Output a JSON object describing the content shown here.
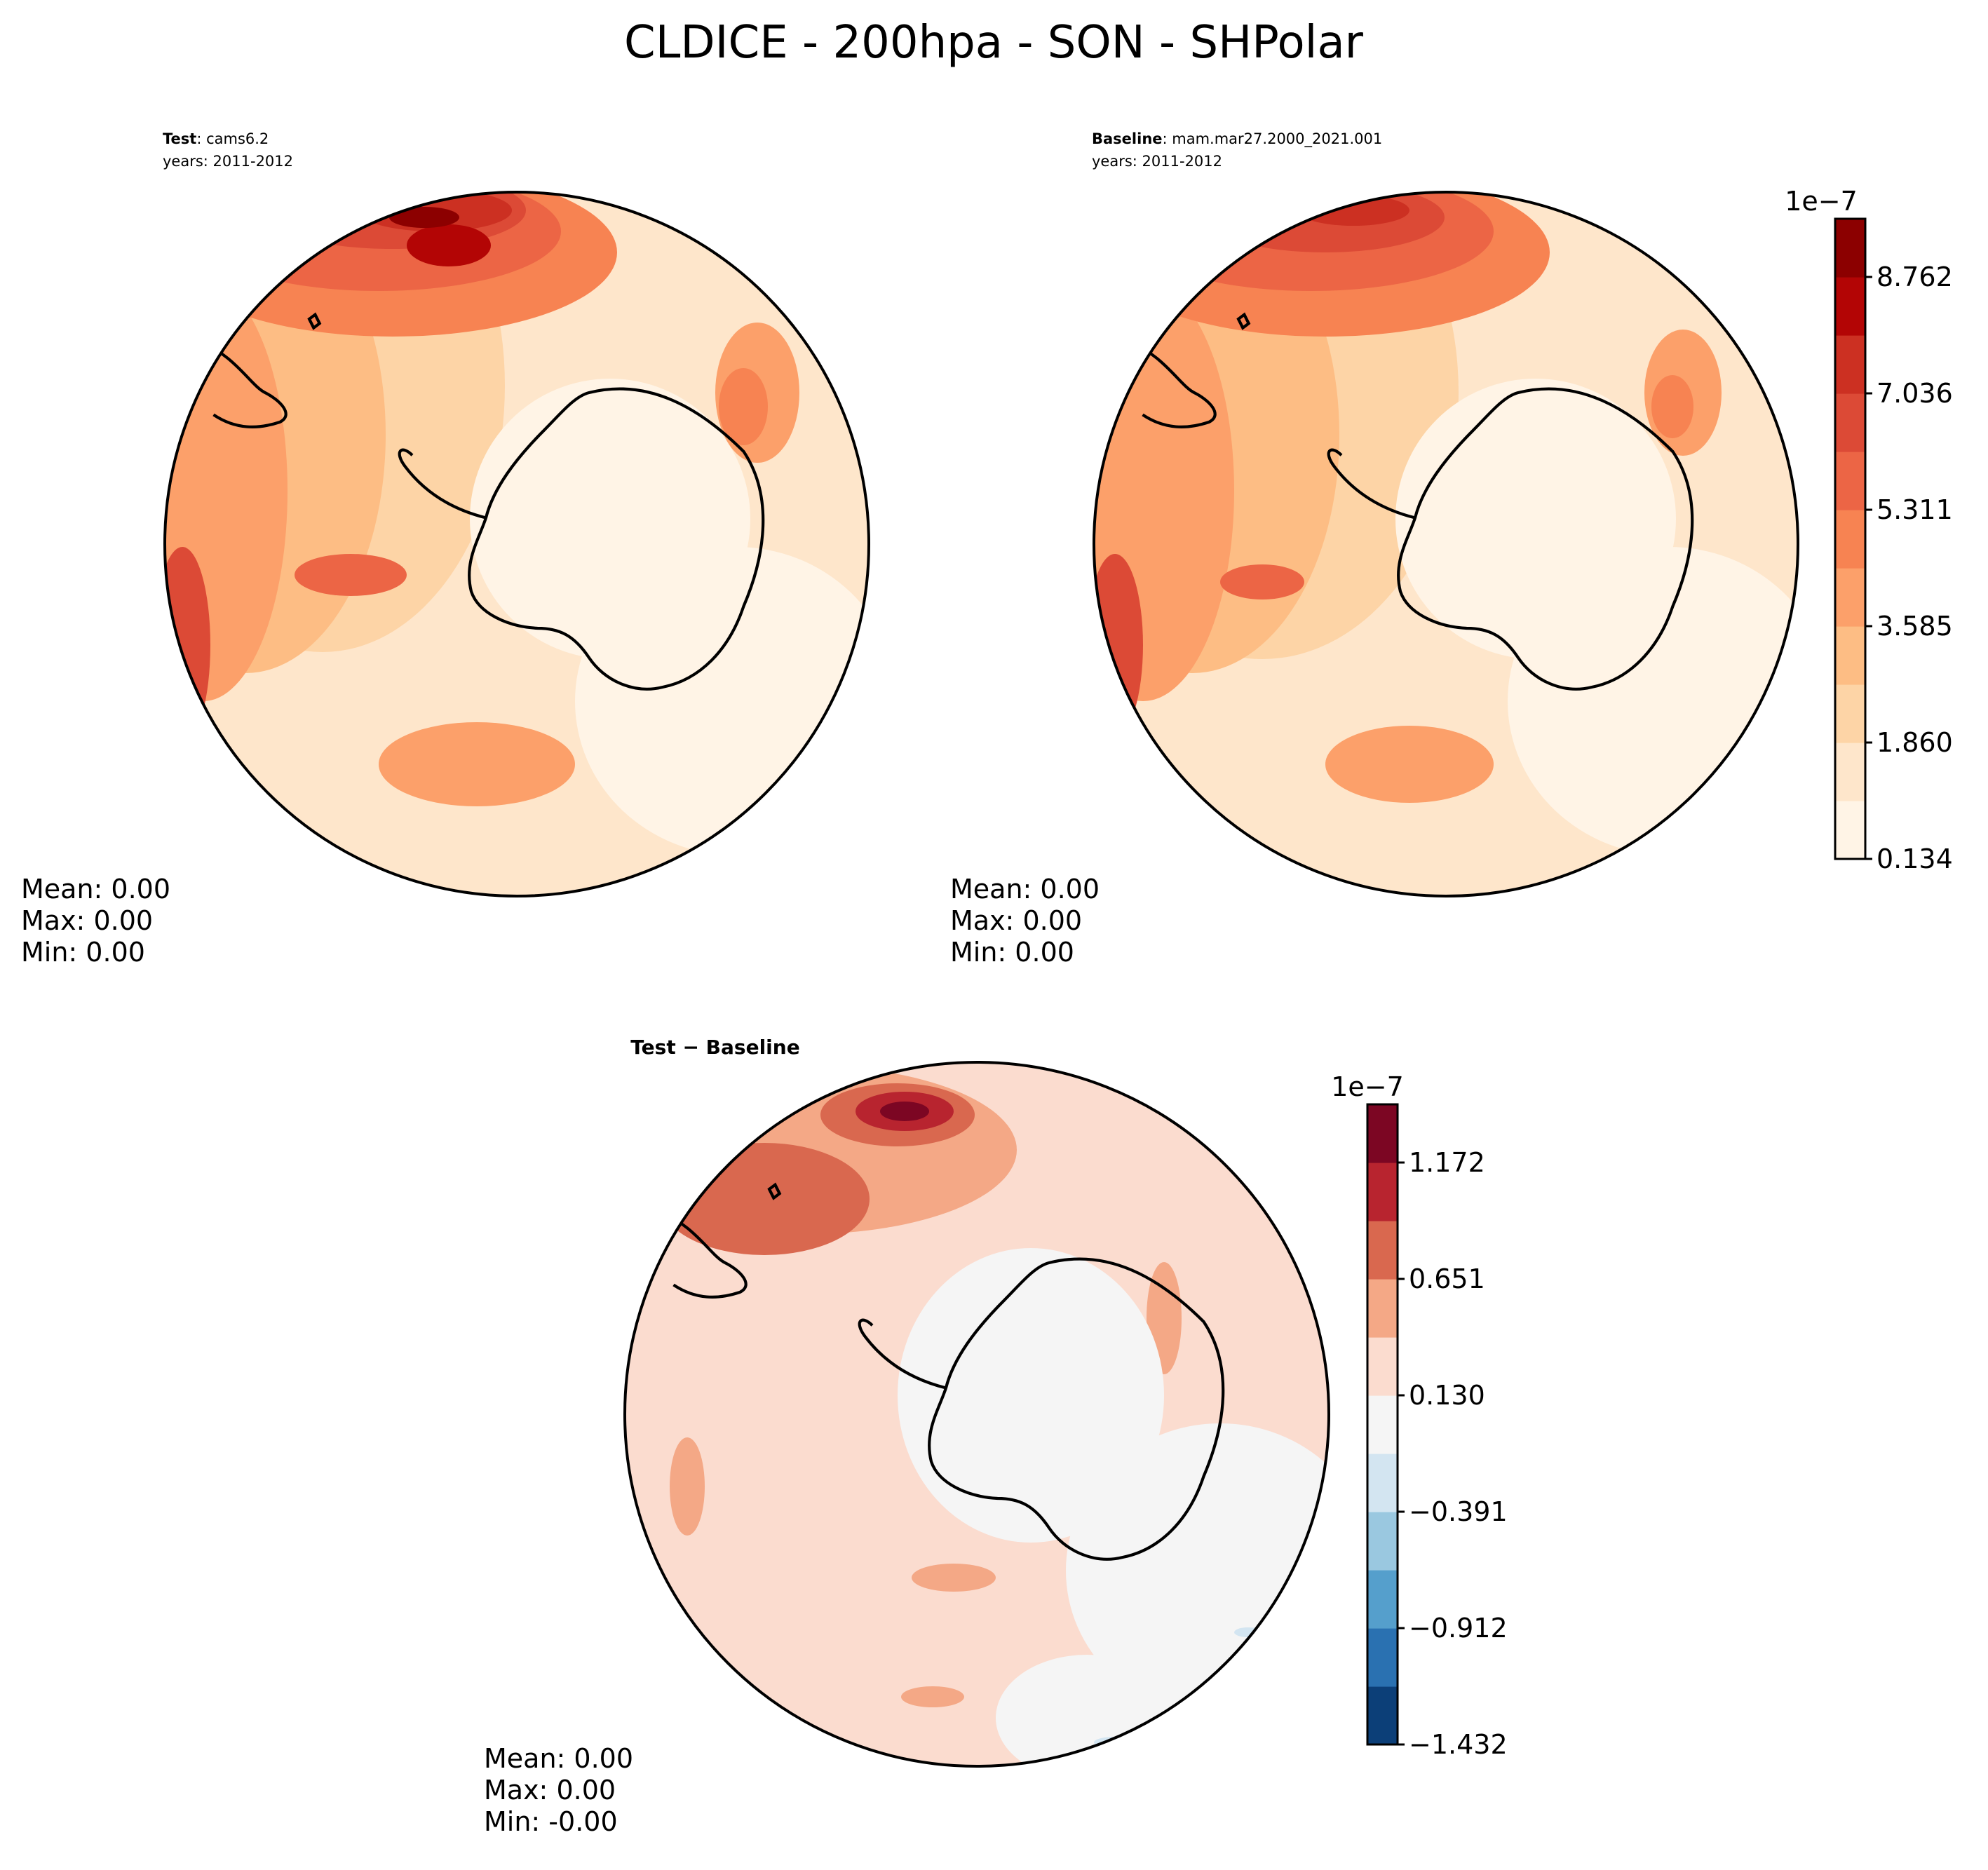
{
  "figure": {
    "title": "CLDICE - 200hpa - SON - SHPolar"
  },
  "panels": {
    "test": {
      "label": "Test",
      "case": ": cams6.2",
      "years": "years: 2011-2012",
      "mean": "Mean:  0.00",
      "max": "Max:  0.00",
      "min": "Min:  0.00"
    },
    "baseline": {
      "label": "Baseline",
      "case": ": mam.mar27.2000_2021.001",
      "years": "years: 2011-2012",
      "mean": "Mean:  0.00",
      "max": "Max:  0.00",
      "min": "Min:  0.00"
    },
    "diff": {
      "label": "Test − Baseline",
      "mean": "Mean:  0.00",
      "max": "Max:  0.00",
      "min": "Min: -0.00"
    }
  },
  "colorbars": {
    "field": {
      "exponent": "1e−7",
      "ticks": [
        "0.134",
        "1.860",
        "3.585",
        "5.311",
        "7.036",
        "8.762"
      ],
      "levels": 11,
      "colors": [
        "#fff4e6",
        "#fee6cb",
        "#fdd4a6",
        "#fdbd84",
        "#fca06a",
        "#f78352",
        "#ec6545",
        "#dc4a36",
        "#cc3022",
        "#b30505",
        "#8c0000"
      ]
    },
    "diff": {
      "exponent": "1e−7",
      "ticks": [
        "−1.432",
        "−0.912",
        "−0.391",
        "0.130",
        "0.651",
        "1.172"
      ],
      "levels": 11,
      "colors": [
        "#0c3f78",
        "#2a71b1",
        "#559fcc",
        "#9ac8e0",
        "#d3e5f1",
        "#f5f5f5",
        "#fbdccf",
        "#f4a886",
        "#d9684f",
        "#b8242f",
        "#7c0623"
      ]
    }
  }
}
